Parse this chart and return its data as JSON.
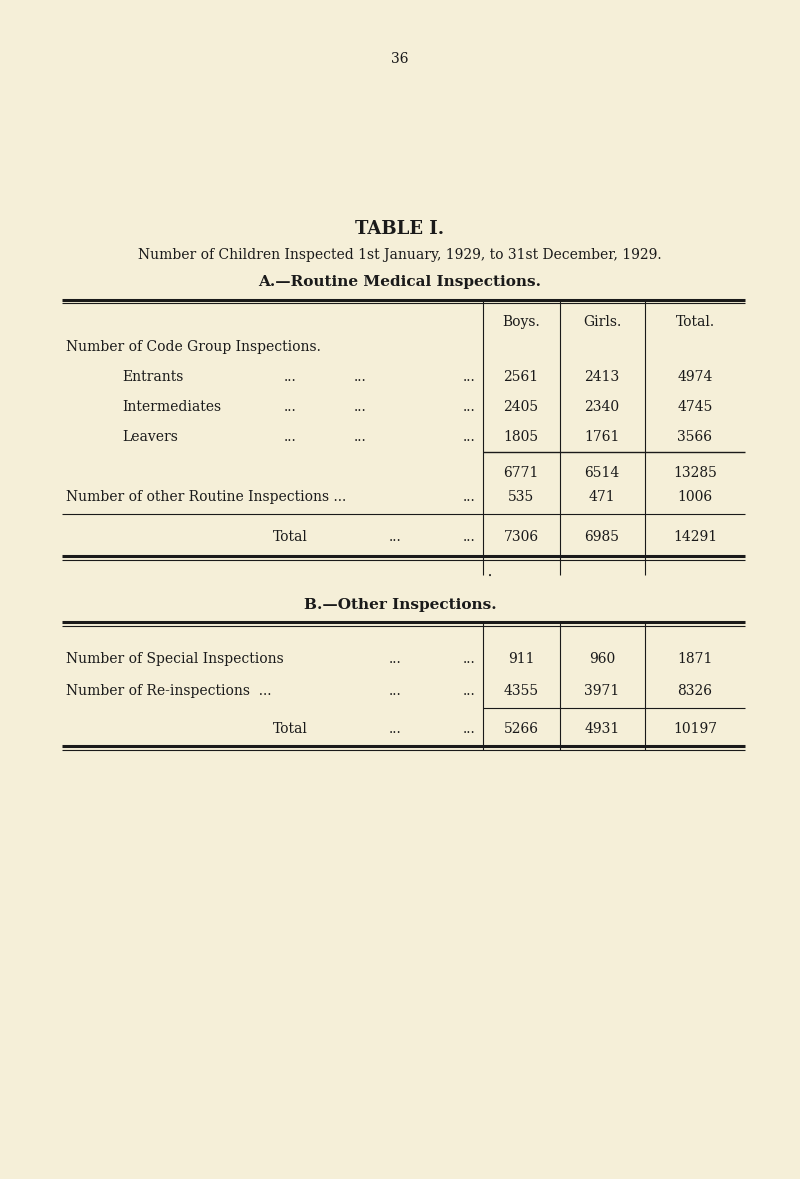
{
  "page_number": "36",
  "title": "TABLE I.",
  "subtitle": "Number of Children Inspected 1st January, 1929, to 31st December, 1929.",
  "section_a_title": "A.—Routine Medical Inspections.",
  "section_b_title": "B.—Other Inspections.",
  "col_headers": [
    "Boys.",
    "Girls.",
    "Total."
  ],
  "section_a": {
    "header_label": "Number of Code Group Inspections.",
    "rows": [
      {
        "label": "Entrants",
        "boys": "2561",
        "girls": "2413",
        "total": "4974"
      },
      {
        "label": "Intermediates",
        "boys": "2405",
        "girls": "2340",
        "total": "4745"
      },
      {
        "label": "Leavers",
        "boys": "1805",
        "girls": "1761",
        "total": "3566"
      }
    ],
    "subtotal": {
      "boys": "6771",
      "girls": "6514",
      "total": "13285"
    },
    "other_row": {
      "label": "Number of other Routine Inspections ...",
      "boys": "535",
      "girls": "471",
      "total": "1006"
    },
    "total_row": {
      "label": "Total",
      "boys": "7306",
      "girls": "6985",
      "total": "14291"
    }
  },
  "section_b": {
    "rows": [
      {
        "label": "Number of Special Inspections",
        "boys": "911",
        "girls": "960",
        "total": "1871"
      },
      {
        "label": "Number of Re-inspections  ...",
        "boys": "4355",
        "girls": "3971",
        "total": "8326"
      }
    ],
    "total_row": {
      "label": "Total",
      "boys": "5266",
      "girls": "4931",
      "total": "10197"
    }
  },
  "bg_color": "#f5efd8",
  "text_color": "#1a1a1a",
  "line_color": "#1a1a1a",
  "fs_title": 13,
  "fs_subtitle": 10,
  "fs_section": 11,
  "fs_body": 10,
  "fs_page": 10
}
